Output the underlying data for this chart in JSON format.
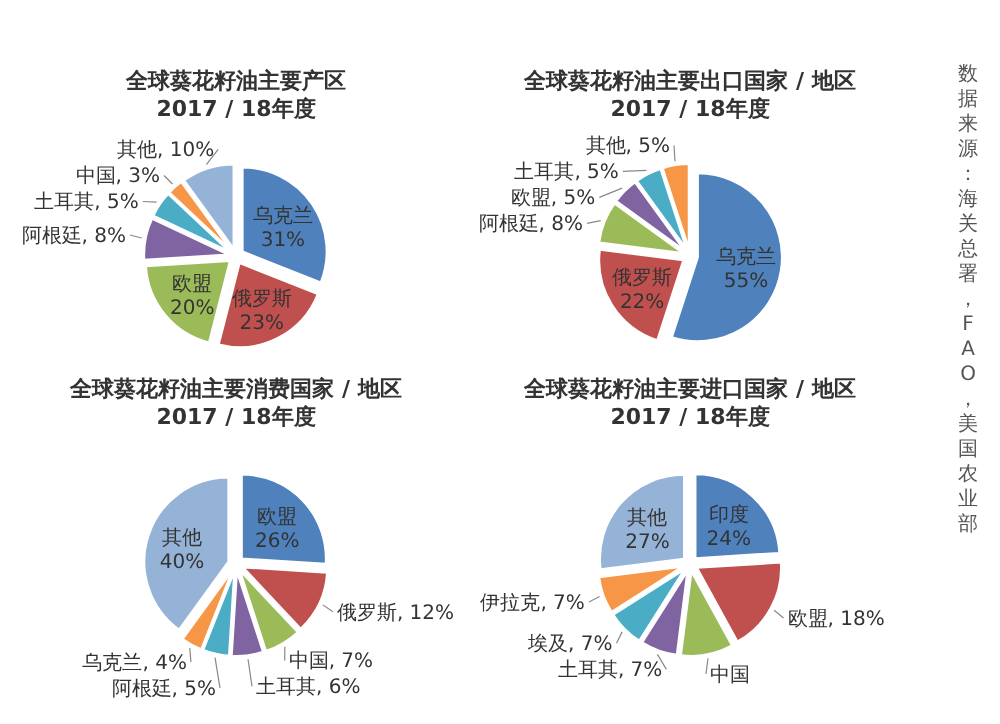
{
  "chart_data": [
    {
      "type": "pie",
      "title": "全球葵花籽油主要产区",
      "subtitle": "2017 / 18年度",
      "categories": [
        "乌克兰",
        "俄罗斯",
        "欧盟",
        "阿根廷",
        "土耳其",
        "中国",
        "其他"
      ],
      "values": [
        31,
        23,
        20,
        8,
        5,
        3,
        10
      ],
      "value_labels": [
        "31%",
        "23%",
        "20%",
        "8%",
        "5%",
        "3%",
        "10%"
      ],
      "colors": [
        "#4f81bd",
        "#c0504d",
        "#9bbb59",
        "#8064a2",
        "#4bacc6",
        "#f79646",
        "#95b3d7"
      ]
    },
    {
      "type": "pie",
      "title": "全球葵花籽油主要出口国家 / 地区",
      "subtitle": "2017 / 18年度",
      "categories": [
        "乌克兰",
        "俄罗斯",
        "阿根廷",
        "欧盟",
        "土耳其",
        "其他"
      ],
      "values": [
        55,
        22,
        8,
        5,
        5,
        5
      ],
      "value_labels": [
        "55%",
        "22%",
        "8%",
        "5%",
        "5%",
        "5%"
      ],
      "colors": [
        "#4f81bd",
        "#c0504d",
        "#9bbb59",
        "#8064a2",
        "#4bacc6",
        "#f79646"
      ],
      "annotations": [
        "数据来源：海关总署，FAO，美国农业部"
      ]
    },
    {
      "type": "pie",
      "title": "全球葵花籽油主要消费国家 / 地区",
      "subtitle": "2017 / 18年度",
      "categories": [
        "欧盟",
        "俄罗斯",
        "中国",
        "土耳其",
        "阿根廷",
        "乌克兰",
        "其他"
      ],
      "values": [
        26,
        12,
        7,
        6,
        5,
        4,
        40
      ],
      "value_labels": [
        "26%",
        "12%",
        "7%",
        "6%",
        "5%",
        "4%",
        "40%"
      ],
      "colors": [
        "#4f81bd",
        "#c0504d",
        "#9bbb59",
        "#8064a2",
        "#4bacc6",
        "#f79646",
        "#95b3d7"
      ]
    },
    {
      "type": "pie",
      "title": "全球葵花籽油主要进口国家 / 地区",
      "subtitle": "2017 / 18年度",
      "categories": [
        "印度",
        "欧盟",
        "中国",
        "土耳其",
        "埃及",
        "伊拉克",
        "其他"
      ],
      "values": [
        24,
        18,
        10,
        7,
        7,
        7,
        27
      ],
      "value_labels": [
        "24%",
        "18%",
        null,
        "7%",
        "7%",
        "7%",
        "27%"
      ],
      "colors": [
        "#4f81bd",
        "#c0504d",
        "#9bbb59",
        "#8064a2",
        "#4bacc6",
        "#f79646",
        "#95b3d7"
      ]
    }
  ]
}
